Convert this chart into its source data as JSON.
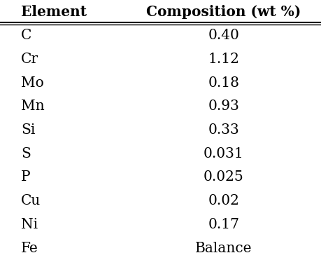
{
  "col_headers": [
    "Element",
    "Composition (wt %)"
  ],
  "rows": [
    [
      "C",
      "0.40"
    ],
    [
      "Cr",
      "1.12"
    ],
    [
      "Mo",
      "0.18"
    ],
    [
      "Mn",
      "0.93"
    ],
    [
      "Si",
      "0.33"
    ],
    [
      "S",
      "0.031"
    ],
    [
      "P",
      "0.025"
    ],
    [
      "Cu",
      "0.02"
    ],
    [
      "Ni",
      "0.17"
    ],
    [
      "Fe",
      "Balance"
    ]
  ],
  "bg_color": "#ffffff",
  "text_color": "#000000",
  "header_fontsize": 14.5,
  "row_fontsize": 14.5,
  "figsize": [
    4.59,
    3.71
  ],
  "dpi": 100
}
